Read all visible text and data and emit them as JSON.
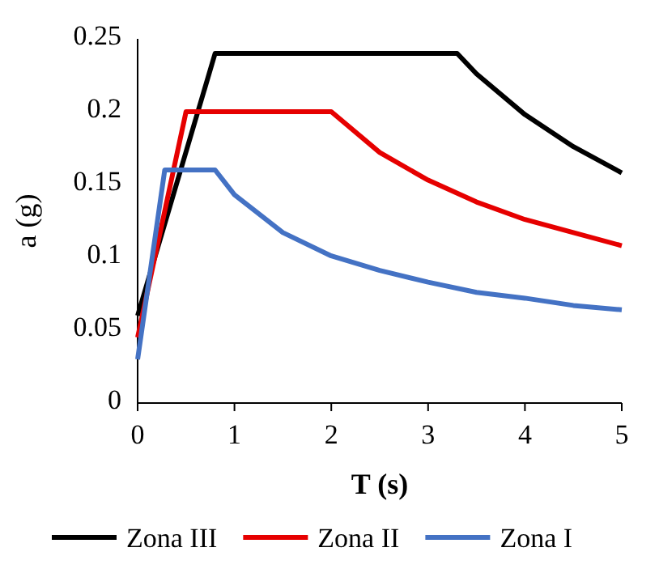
{
  "chart_data": {
    "type": "line",
    "xlabel": "T (s)",
    "ylabel": "a (g)",
    "xlim": [
      0,
      5
    ],
    "xticks": [
      0,
      1,
      2,
      3,
      4,
      5
    ],
    "ylim": [
      0,
      0.25
    ],
    "yticks": [
      0,
      0.05,
      0.1,
      0.15,
      0.2,
      0.25
    ],
    "legend": "bottom",
    "line_style": "solid",
    "series": [
      {
        "name": "Zona III",
        "color": "#000000",
        "x": [
          0,
          0.8,
          3.3,
          3.5,
          4,
          4.5,
          5
        ],
        "values": [
          0.06,
          0.24,
          0.24,
          0.226,
          0.198,
          0.176,
          0.158
        ]
      },
      {
        "name": "Zona II",
        "color": "#e60000",
        "x": [
          0,
          0.5,
          2,
          2.5,
          3,
          3.5,
          4,
          4.5,
          5
        ],
        "values": [
          0.045,
          0.2,
          0.2,
          0.172,
          0.153,
          0.138,
          0.126,
          0.117,
          0.108
        ]
      },
      {
        "name": "Zona I",
        "color": "#4472c4",
        "x": [
          0,
          0.28,
          0.8,
          1,
          1.5,
          2,
          2.5,
          3,
          3.5,
          4,
          4.5,
          5
        ],
        "values": [
          0.03,
          0.16,
          0.16,
          0.143,
          0.117,
          0.101,
          0.091,
          0.083,
          0.076,
          0.072,
          0.067,
          0.064
        ]
      }
    ]
  }
}
